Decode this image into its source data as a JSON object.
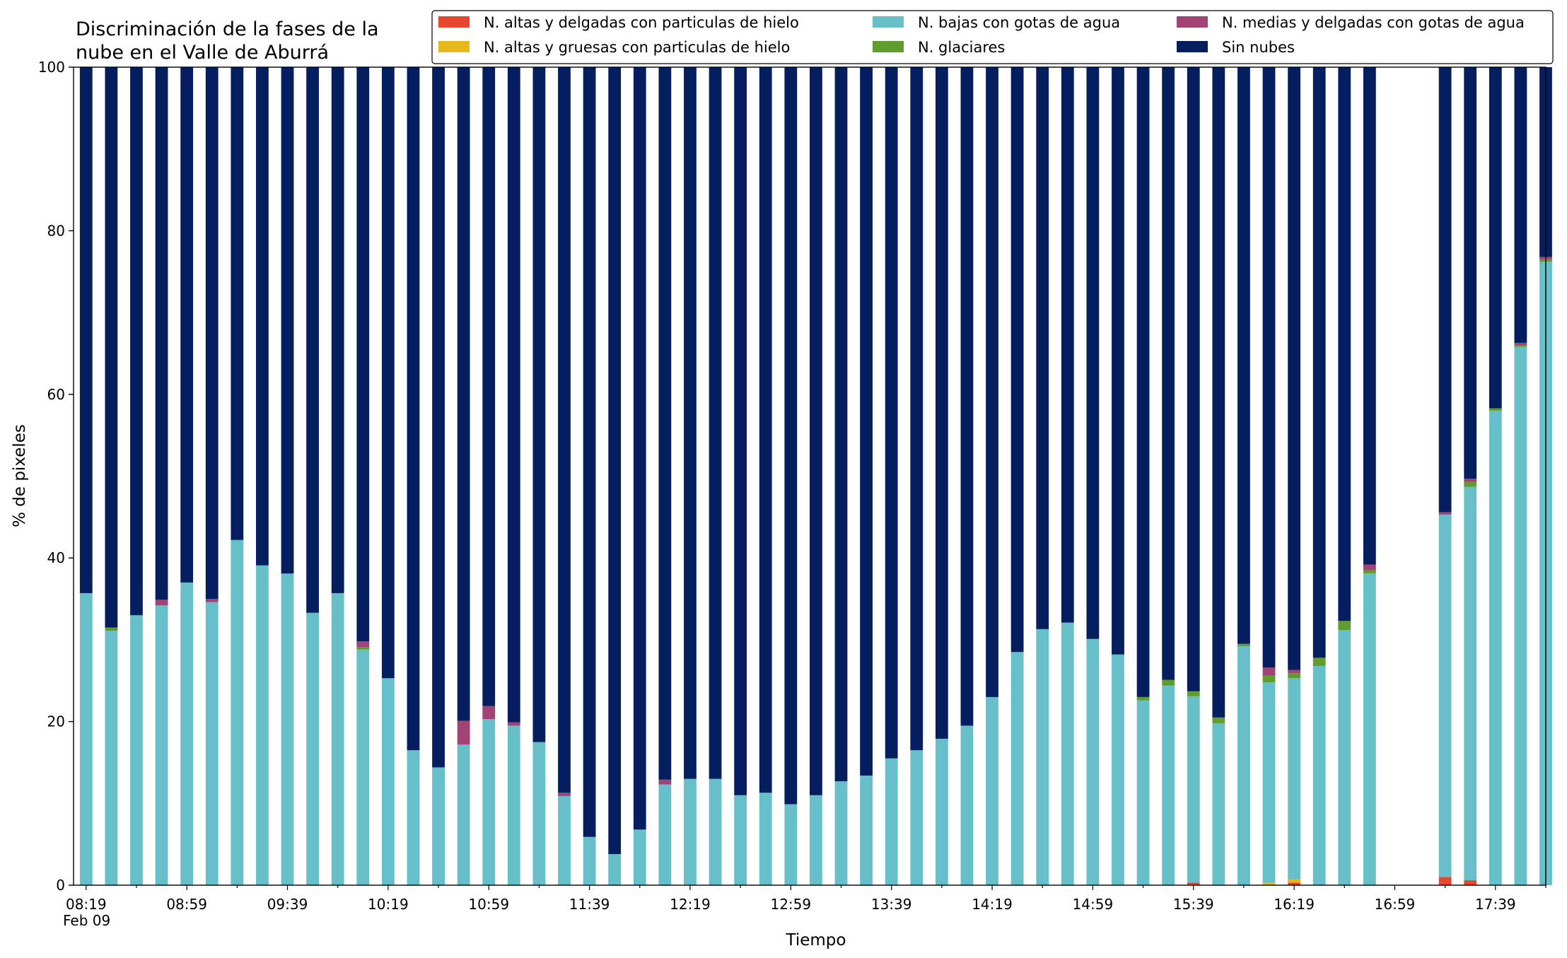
{
  "chart_data": {
    "type": "bar",
    "stacked": true,
    "title_lines": [
      "Discriminación de la fases de la",
      "nube en el Valle de Aburrá"
    ],
    "xlabel": "Tiempo",
    "ylabel": "% de pixeles",
    "ylim": [
      0,
      100
    ],
    "yticks": [
      0,
      20,
      40,
      60,
      80,
      100
    ],
    "xlim": [
      "08:14",
      "17:59"
    ],
    "bar_start": "08:19",
    "bar_interval_minutes": 10,
    "bar_width_minutes": 5,
    "xticks_major": [
      "08:19",
      "08:59",
      "09:39",
      "10:19",
      "10:59",
      "11:39",
      "12:19",
      "12:59",
      "13:39",
      "14:19",
      "14:59",
      "15:39",
      "16:19",
      "16:59",
      "17:39"
    ],
    "xtick_date_label": "Feb 09",
    "grid": false,
    "legend_position": "top-right",
    "legend_columns": 3,
    "colors": {
      "altas_delgadas": "#e8472f",
      "altas_gruesas": "#e5b81b",
      "bajas_agua": "#66bfc9",
      "glaciares": "#5f9e2d",
      "medias_delgadas": "#a34274",
      "sin_nubes": "#041e60"
    },
    "series": [
      {
        "key": "altas_delgadas",
        "name": "N. altas y delgadas con particulas de hielo",
        "values": [
          0,
          0,
          0,
          0,
          0,
          0,
          0,
          0,
          0,
          0,
          0,
          0,
          0,
          0,
          0,
          0,
          0,
          0,
          0,
          0,
          0,
          0,
          0,
          0,
          0,
          0,
          0,
          0,
          0,
          0,
          0,
          0,
          0,
          0,
          0,
          0,
          0,
          0,
          0,
          0,
          0,
          0,
          0,
          0,
          0.3,
          0,
          0,
          0,
          0.3,
          0,
          0,
          0,
          0,
          0,
          1,
          0.6,
          0,
          0,
          0
        ]
      },
      {
        "key": "altas_gruesas",
        "name": "N. altas y gruesas con particulas de hielo",
        "values": [
          0,
          0,
          0,
          0,
          0,
          0,
          0,
          0,
          0,
          0,
          0,
          0,
          0,
          0,
          0,
          0,
          0,
          0,
          0,
          0,
          0,
          0,
          0,
          0,
          0,
          0,
          0,
          0,
          0,
          0,
          0,
          0,
          0,
          0,
          0,
          0,
          0,
          0,
          0,
          0,
          0,
          0,
          0,
          0,
          0,
          0,
          0,
          0.3,
          0.4,
          0,
          0,
          0,
          0,
          0,
          0,
          0,
          0,
          0,
          0
        ]
      },
      {
        "key": "bajas_agua",
        "name": "N. bajas con gotas de agua",
        "values": [
          35.7,
          31.1,
          33,
          34.2,
          37,
          34.6,
          42.2,
          39.1,
          38.1,
          33.3,
          35.7,
          28.8,
          25.3,
          16.5,
          14.4,
          17.2,
          20.3,
          19.5,
          17.5,
          10.9,
          5.9,
          3.8,
          6.8,
          12.3,
          13,
          13,
          11,
          11.3,
          9.9,
          11,
          12.7,
          13.4,
          15.5,
          16.5,
          17.9,
          19.5,
          23,
          28.5,
          31.3,
          32.1,
          30.1,
          28.2,
          22.6,
          24.4,
          22.8,
          19.8,
          29.2,
          24.5,
          24.6,
          26.8,
          31.2,
          38.1,
          0,
          0,
          44.3,
          48.1,
          58,
          65.8,
          76.2
        ]
      },
      {
        "key": "glaciares",
        "name": "N. glaciares",
        "values": [
          0,
          0.4,
          0,
          0,
          0,
          0,
          0,
          0,
          0,
          0,
          0,
          0.3,
          0,
          0,
          0,
          0,
          0,
          0,
          0,
          0,
          0,
          0,
          0,
          0,
          0,
          0,
          0,
          0,
          0,
          0,
          0,
          0,
          0,
          0,
          0,
          0,
          0,
          0,
          0,
          0,
          0,
          0,
          0.4,
          0.7,
          0.6,
          0.7,
          0.3,
          0.8,
          0.6,
          1,
          1.1,
          0.4,
          0,
          0,
          0,
          0.6,
          0.3,
          0.2,
          0.3
        ]
      },
      {
        "key": "medias_delgadas",
        "name": "N. medias y delgadas con gotas de agua",
        "values": [
          0,
          0,
          0,
          0.7,
          0,
          0.4,
          0,
          0,
          0,
          0,
          0,
          0.7,
          0,
          0,
          0,
          2.9,
          1.6,
          0.4,
          0,
          0.4,
          0,
          0,
          0,
          0.6,
          0,
          0,
          0,
          0,
          0,
          0,
          0,
          0,
          0,
          0,
          0,
          0,
          0,
          0,
          0,
          0,
          0,
          0,
          0,
          0,
          0,
          0,
          0,
          1,
          0.4,
          0,
          0,
          0.7,
          0,
          0,
          0.3,
          0.4,
          0,
          0.3,
          0.3
        ]
      },
      {
        "key": "sin_nubes",
        "name": "Sin nubes",
        "values": [
          64.3,
          68.5,
          67,
          65.1,
          63,
          65,
          57.8,
          60.9,
          61.9,
          66.7,
          64.3,
          70.2,
          74.7,
          83.5,
          85.6,
          79.9,
          78.1,
          80.1,
          82.5,
          88.7,
          94.1,
          96.2,
          93.2,
          87.1,
          87,
          87,
          89,
          88.7,
          90.1,
          89,
          87.3,
          86.6,
          84.5,
          83.5,
          82.1,
          80.5,
          77,
          71.5,
          68.7,
          67.9,
          69.9,
          71.8,
          77,
          74.9,
          76.3,
          79.5,
          70.5,
          73.4,
          73.7,
          72.2,
          67.7,
          60.8,
          0,
          0,
          54.4,
          50.3,
          41.7,
          33.7,
          23.2
        ]
      }
    ]
  }
}
